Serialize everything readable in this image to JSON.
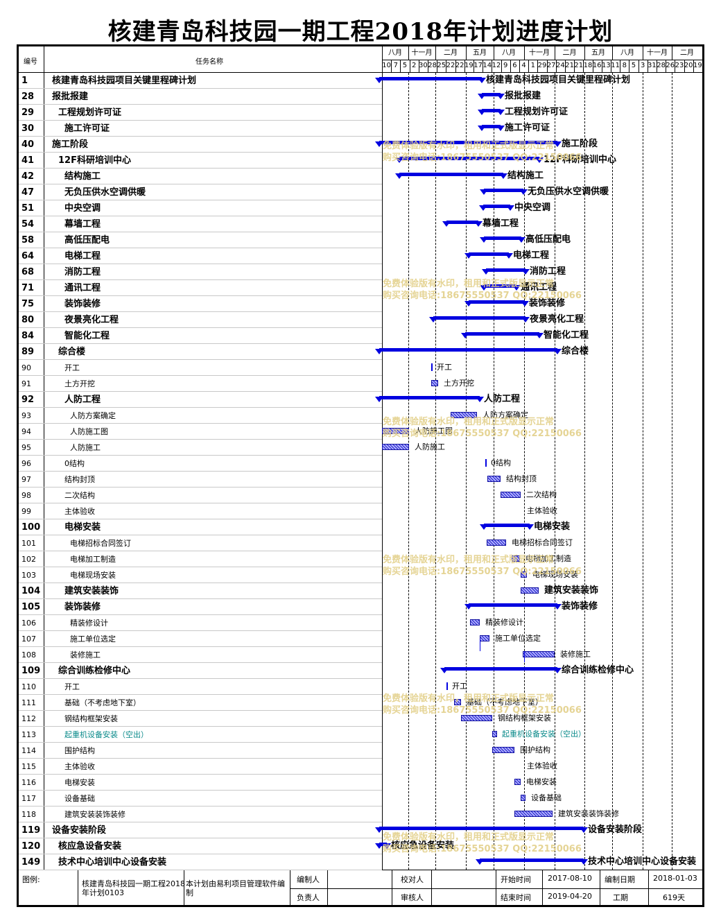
{
  "title": "核建青岛科技园一期工程2018年计划进度计划",
  "header": {
    "id_col": "编号",
    "name_col": "任务名称"
  },
  "timeline": {
    "months": [
      "八月",
      "十一月",
      "二月",
      "五月",
      "八月",
      "十一月",
      "二月",
      "五月",
      "八月",
      "十一月",
      "二月"
    ],
    "ticks": [
      "10",
      "7",
      "5",
      "2",
      "30",
      "28",
      "25",
      "22",
      "22",
      "19",
      "17",
      "14",
      "12",
      "9",
      "6",
      "4",
      "1",
      "29",
      "27",
      "24",
      "21",
      "21",
      "18",
      "16",
      "13",
      "11",
      "8",
      "5",
      "3",
      "31",
      "28",
      "26",
      "23",
      "20",
      "19"
    ]
  },
  "rows": [
    {
      "id": "1",
      "name": "核建青岛科技园项目关键里程碑计划",
      "style": "b",
      "indent": 0,
      "bar": {
        "kind": "summary",
        "s": 547,
        "e": 695
      },
      "label": "核建青岛科技园项目关键里程碑计划"
    },
    {
      "id": "28",
      "name": "报批报建",
      "style": "b",
      "indent": 0,
      "bar": {
        "kind": "summary",
        "s": 695,
        "e": 722
      },
      "label": "报批报建"
    },
    {
      "id": "29",
      "name": "工程规划许可证",
      "style": "b",
      "indent": 1,
      "bar": {
        "kind": "summary",
        "s": 695,
        "e": 722
      },
      "label": "工程规划许可证"
    },
    {
      "id": "30",
      "name": "施工许可证",
      "style": "b",
      "indent": 2,
      "bar": {
        "kind": "summary",
        "s": 695,
        "e": 722
      },
      "label": "施工许可证"
    },
    {
      "id": "40",
      "name": "施工阶段",
      "style": "b",
      "indent": 0,
      "bar": {
        "kind": "summary",
        "s": 547,
        "e": 804
      },
      "label": "施工阶段"
    },
    {
      "id": "41",
      "name": "12F科研培训中心",
      "style": "b",
      "indent": 1,
      "bar": {
        "kind": "summary",
        "s": 576,
        "e": 778
      },
      "label": "12F科研培训中心"
    },
    {
      "id": "42",
      "name": "结构施工",
      "style": "b",
      "indent": 2,
      "bar": {
        "kind": "summary",
        "s": 576,
        "e": 726
      },
      "label": "结构施工"
    },
    {
      "id": "47",
      "name": "无负压供水空调供暖",
      "style": "b",
      "indent": 2,
      "bar": {
        "kind": "summary",
        "s": 698,
        "e": 755
      },
      "label": "无负压供水空调供暖"
    },
    {
      "id": "51",
      "name": "中央空调",
      "style": "b",
      "indent": 2,
      "bar": {
        "kind": "summary",
        "s": 697,
        "e": 736
      },
      "label": "中央空调"
    },
    {
      "id": "54",
      "name": "幕墙工程",
      "style": "b",
      "indent": 2,
      "bar": {
        "kind": "summary",
        "s": 644,
        "e": 690
      },
      "label": "幕墙工程"
    },
    {
      "id": "58",
      "name": "高低压配电",
      "style": "b",
      "indent": 2,
      "bar": {
        "kind": "summary",
        "s": 698,
        "e": 752
      },
      "label": "高低压配电"
    },
    {
      "id": "64",
      "name": "电梯工程",
      "style": "b",
      "indent": 2,
      "bar": {
        "kind": "summary",
        "s": 676,
        "e": 734
      },
      "label": "电梯工程"
    },
    {
      "id": "68",
      "name": "消防工程",
      "style": "b",
      "indent": 2,
      "bar": {
        "kind": "summary",
        "s": 701,
        "e": 758
      },
      "label": "消防工程"
    },
    {
      "id": "71",
      "name": "通讯工程",
      "style": "b",
      "indent": 2,
      "bar": {
        "kind": "summary",
        "s": 698,
        "e": 745
      },
      "label": "通讯工程"
    },
    {
      "id": "75",
      "name": "装饰装修",
      "style": "b",
      "indent": 2,
      "bar": {
        "kind": "summary",
        "s": 676,
        "e": 757
      },
      "label": "装饰装修"
    },
    {
      "id": "80",
      "name": "夜景亮化工程",
      "style": "b",
      "indent": 2,
      "bar": {
        "kind": "summary",
        "s": 625,
        "e": 758
      },
      "label": "夜景亮化工程"
    },
    {
      "id": "84",
      "name": "智能化工程",
      "style": "b",
      "indent": 2,
      "bar": {
        "kind": "summary",
        "s": 671,
        "e": 778
      },
      "label": "智能化工程"
    },
    {
      "id": "89",
      "name": "综合楼",
      "style": "b",
      "indent": 1,
      "bar": {
        "kind": "summary",
        "s": 547,
        "e": 804
      },
      "label": "综合楼"
    },
    {
      "id": "90",
      "name": "开工",
      "style": "n",
      "indent": 2,
      "bar": {
        "kind": "mile",
        "s": 622
      },
      "label": "开工"
    },
    {
      "id": "91",
      "name": "土方开挖",
      "style": "n",
      "indent": 2,
      "bar": {
        "kind": "task",
        "s": 622,
        "e": 632
      },
      "label": "土方开挖"
    },
    {
      "id": "92",
      "name": "人防工程",
      "style": "b",
      "indent": 2,
      "bar": {
        "kind": "summary",
        "s": 547,
        "e": 692
      },
      "label": "人防工程"
    },
    {
      "id": "93",
      "name": "人防方案确定",
      "style": "n",
      "indent": 3,
      "bar": {
        "kind": "task",
        "s": 650,
        "e": 688
      },
      "label": "人防方案确定"
    },
    {
      "id": "94",
      "name": "人防施工图",
      "style": "n",
      "indent": 3,
      "bar": {
        "kind": "task",
        "s": 551,
        "e": 590
      },
      "label": "人防施工图"
    },
    {
      "id": "95",
      "name": "人防施工",
      "style": "n",
      "indent": 3,
      "bar": {
        "kind": "task",
        "s": 551,
        "e": 590
      },
      "label": "人防施工"
    },
    {
      "id": "96",
      "name": "0结构",
      "style": "n",
      "indent": 2,
      "bar": {
        "kind": "mile",
        "s": 700
      },
      "label": "0结构"
    },
    {
      "id": "97",
      "name": "结构封顶",
      "style": "n",
      "indent": 2,
      "bar": {
        "kind": "task",
        "s": 703,
        "e": 722
      },
      "label": "结构封顶"
    },
    {
      "id": "98",
      "name": "二次结构",
      "style": "n",
      "indent": 2,
      "bar": {
        "kind": "task",
        "s": 722,
        "e": 751
      },
      "label": "二次结构"
    },
    {
      "id": "99",
      "name": "主体验收",
      "style": "n",
      "indent": 2,
      "bar": null,
      "label": "主体验收"
    },
    {
      "id": "100",
      "name": "电梯安装",
      "style": "b",
      "indent": 2,
      "bar": {
        "kind": "summary",
        "s": 698,
        "e": 764
      },
      "label": "电梯安装"
    },
    {
      "id": "101",
      "name": "电梯招标合同签订",
      "style": "n",
      "indent": 3,
      "bar": {
        "kind": "task",
        "s": 702,
        "e": 730
      },
      "label": "电梯招标合同签订"
    },
    {
      "id": "102",
      "name": "电梯加工制造",
      "style": "n",
      "indent": 3,
      "bar": {
        "kind": "task",
        "s": 738,
        "e": 750
      },
      "label": "电梯加工制造"
    },
    {
      "id": "103",
      "name": "电梯现场安装",
      "style": "n",
      "indent": 3,
      "bar": {
        "kind": "task",
        "s": 751,
        "e": 760
      },
      "label": "电梯现场安装"
    },
    {
      "id": "104",
      "name": "建筑安装装饰",
      "style": "b",
      "indent": 2,
      "bar": {
        "kind": "task",
        "s": 751,
        "e": 777
      },
      "label": "建筑安装装饰"
    },
    {
      "id": "105",
      "name": "装饰装修",
      "style": "b",
      "indent": 2,
      "bar": {
        "kind": "summary",
        "s": 676,
        "e": 804
      },
      "label": "装饰装修"
    },
    {
      "id": "106",
      "name": "精装修设计",
      "style": "n",
      "indent": 3,
      "bar": {
        "kind": "task",
        "s": 678,
        "e": 692
      },
      "label": "精装修设计"
    },
    {
      "id": "107",
      "name": "施工单位选定",
      "style": "n",
      "indent": 3,
      "bar": {
        "kind": "task",
        "s": 692,
        "e": 706
      },
      "label": "施工单位选定"
    },
    {
      "id": "108",
      "name": "装修施工",
      "style": "n",
      "indent": 3,
      "bar": {
        "kind": "task",
        "s": 754,
        "e": 800
      },
      "label": "装修施工"
    },
    {
      "id": "109",
      "name": "综合训练检修中心",
      "style": "b",
      "indent": 1,
      "bar": {
        "kind": "summary",
        "s": 641,
        "e": 804
      },
      "label": "综合训练检修中心"
    },
    {
      "id": "110",
      "name": "开工",
      "style": "n",
      "indent": 2,
      "bar": {
        "kind": "mile",
        "s": 644
      },
      "label": "开工"
    },
    {
      "id": "111",
      "name": "基础（不考虑地下室）",
      "style": "n",
      "indent": 2,
      "bar": {
        "kind": "task",
        "s": 655,
        "e": 665
      },
      "label": "基础（不考虑地下室）"
    },
    {
      "id": "112",
      "name": "钢结构框架安装",
      "style": "n",
      "indent": 2,
      "bar": {
        "kind": "task",
        "s": 665,
        "e": 710
      },
      "label": "钢结构框架安装"
    },
    {
      "id": "113",
      "name": "起重机设备安装（空出）",
      "style": "teal",
      "indent": 2,
      "bar": {
        "kind": "task",
        "s": 710,
        "e": 716
      },
      "label": "起重机设备安装（空出）"
    },
    {
      "id": "114",
      "name": "围护结构",
      "style": "n",
      "indent": 2,
      "bar": {
        "kind": "task",
        "s": 710,
        "e": 742
      },
      "label": "围护结构"
    },
    {
      "id": "115",
      "name": "主体验收",
      "style": "n",
      "indent": 2,
      "bar": null,
      "label": "主体验收"
    },
    {
      "id": "116",
      "name": "电梯安装",
      "style": "n",
      "indent": 2,
      "bar": {
        "kind": "task",
        "s": 742,
        "e": 751
      },
      "label": "电梯安装"
    },
    {
      "id": "117",
      "name": "设备基础",
      "style": "n",
      "indent": 2,
      "bar": {
        "kind": "task",
        "s": 751,
        "e": 758
      },
      "label": "设备基础"
    },
    {
      "id": "118",
      "name": "建筑安装装饰装修",
      "style": "n",
      "indent": 2,
      "bar": {
        "kind": "task",
        "s": 742,
        "e": 797
      },
      "label": "建筑安装装饰装修"
    },
    {
      "id": "119",
      "name": "设备安装阶段",
      "style": "b",
      "indent": 0,
      "bar": {
        "kind": "summary",
        "s": 547,
        "e": 842
      },
      "label": "设备安装阶段"
    },
    {
      "id": "120",
      "name": "核应急设备安装",
      "style": "b",
      "indent": 1,
      "bar": {
        "kind": "summary",
        "s": 547,
        "e": 558
      },
      "label": "核应急设备安装"
    },
    {
      "id": "149",
      "name": "技术中心培训中心设备安装",
      "style": "b",
      "indent": 1,
      "bar": {
        "kind": "summary",
        "s": 692,
        "e": 842
      },
      "label": "技术中心培训中心设备安装"
    }
  ],
  "watermark": {
    "line1": "免费体验版有水印，租用和正式版显示正常",
    "line2": "购买咨询电话:18675550537 QQ:22150066"
  },
  "footer": {
    "legend_label": "图例:",
    "plan_name": "核建青岛科技园一期工程2018年计划0103",
    "software_note": "本计划由易利项目管理软件编制",
    "compiler_label": "编制人",
    "checker_label": "校对人",
    "owner_label": "负责人",
    "reviewer_label": "审核人",
    "start_label": "开始时间",
    "start_value": "2017-08-10",
    "end_label": "结束时间",
    "end_value": "2019-04-20",
    "edit_date_label": "编制日期",
    "edit_date_value": "2018-01-03",
    "duration_label": "工期",
    "duration_value": "619天"
  }
}
